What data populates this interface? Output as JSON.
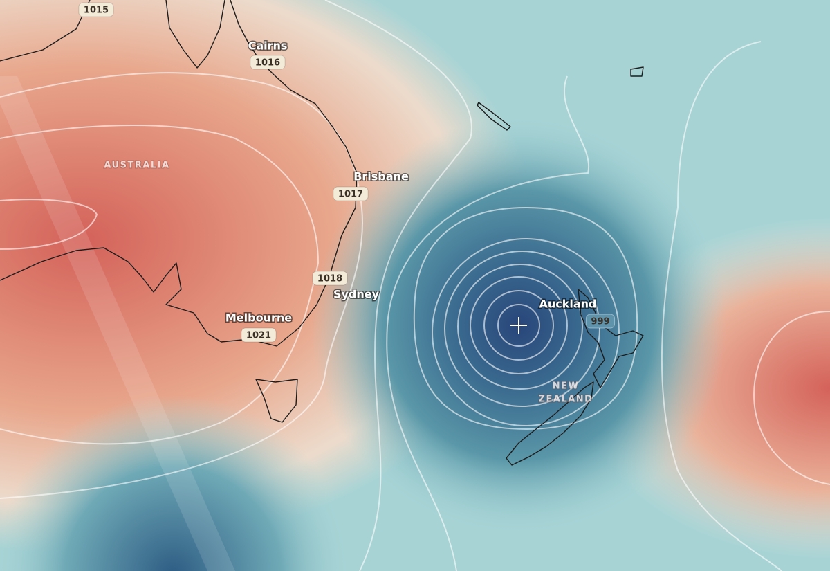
{
  "regions": [
    {
      "lines": [
        "AUSTRALIA"
      ]
    },
    {
      "lines": [
        "NEW",
        "ZEALAND"
      ]
    }
  ],
  "places": [
    "Cairns",
    "Brisbane",
    "Sydney",
    "Melbourne",
    "Auckland"
  ],
  "pressure_labels": [
    1015,
    1016,
    1017,
    1018,
    1021,
    999
  ]
}
